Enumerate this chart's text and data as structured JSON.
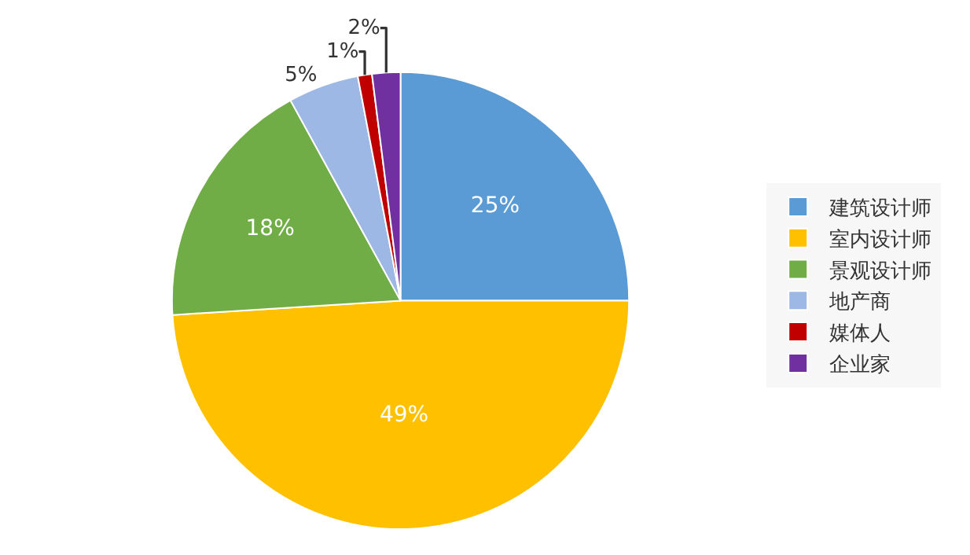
{
  "chart_data": {
    "type": "pie",
    "categories": [
      "建筑设计师",
      "室内设计师",
      "景观设计师",
      "地产商",
      "媒体人",
      "企业家"
    ],
    "values": [
      25,
      49,
      18,
      5,
      1,
      2
    ],
    "value_labels": [
      "25%",
      "49%",
      "18%",
      "5%",
      "1%",
      "2%"
    ],
    "colors": [
      "#5b9bd5",
      "#ffc000",
      "#70ad47",
      "#9db8e5",
      "#c00000",
      "#7030a0"
    ],
    "legend": "right"
  }
}
